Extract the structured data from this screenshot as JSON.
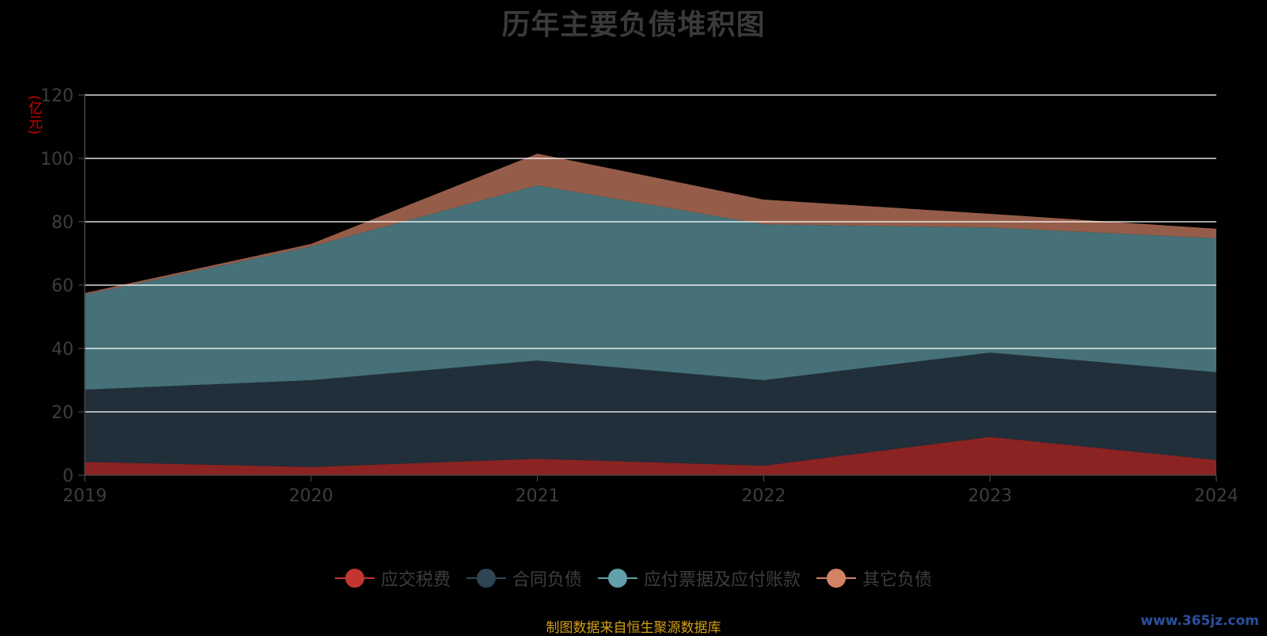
{
  "chart_data": {
    "type": "area",
    "stacked": true,
    "title": "历年主要负债堆积图",
    "ylabel": "(亿元)",
    "x": [
      "2019",
      "2020",
      "2021",
      "2022",
      "2023",
      "2024"
    ],
    "ylim": [
      0,
      120
    ],
    "yticks": [
      0,
      20,
      40,
      60,
      80,
      100,
      120
    ],
    "grid": true,
    "legend_position": "bottom",
    "series": [
      {
        "name": "应交税费",
        "color": "#c23531",
        "fill": "#8b2323",
        "values": [
          4.2,
          2.6,
          5.2,
          3.0,
          12.1,
          4.8
        ]
      },
      {
        "name": "合同负债",
        "color": "#2f4554",
        "fill": "#212f3a",
        "values": [
          22.8,
          27.4,
          31.0,
          27.0,
          26.6,
          27.7
        ]
      },
      {
        "name": "应付票据及应付账款",
        "color": "#61a0a8",
        "fill": "#467178",
        "values": [
          30.0,
          42.2,
          55.3,
          49.2,
          39.5,
          42.3
        ]
      },
      {
        "name": "其它负债",
        "color": "#d48265",
        "fill": "#955d49",
        "values": [
          0.5,
          0.8,
          10.0,
          7.8,
          4.3,
          3.0
        ]
      }
    ]
  },
  "footer": {
    "source": "制图数据来自恒生聚源数据库",
    "watermark": "www.365jz.com"
  }
}
